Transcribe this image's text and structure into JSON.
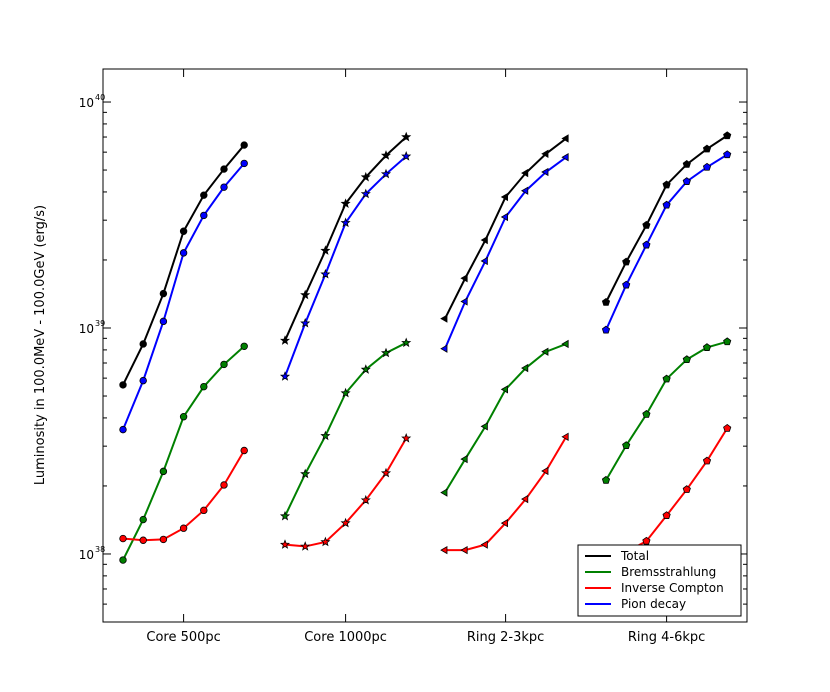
{
  "chart_data": {
    "type": "line",
    "title": "",
    "xlabel": "",
    "ylabel": "Luminosity in 100.0MeV - 100.0GeV (erg/s)",
    "yscale": "log",
    "ylim": [
      5e+37,
      1.4e+40
    ],
    "ytick_labels": [
      "10",
      "38",
      "10",
      "39",
      "10",
      "40"
    ],
    "ytick_values": [
      1e+38,
      1e+39,
      1e+40
    ],
    "grid": false,
    "legend_position": "lower right",
    "groups": [
      "Core 500pc",
      "Core 1000pc",
      "Ring 2-3kpc",
      "Ring 4-6kpc"
    ],
    "markers": [
      "circle",
      "star",
      "triangle-left",
      "pentagon"
    ],
    "series": [
      {
        "name": "Total",
        "color": "#000000",
        "values": [
          [
            5.6e+38,
            8.5e+38,
            1.42e+39,
            2.68e+39,
            3.87e+39,
            5.05e+39,
            6.45e+39
          ],
          [
            8.8e+38,
            1.4e+39,
            2.2e+39,
            3.55e+39,
            4.65e+39,
            5.8e+39,
            7e+39
          ],
          [
            1.1e+39,
            1.66e+39,
            2.45e+39,
            3.8e+39,
            4.85e+39,
            5.9e+39,
            6.9e+39
          ],
          [
            1.3e+39,
            1.96e+39,
            2.85e+39,
            4.3e+39,
            5.3e+39,
            6.2e+39,
            7.1e+39
          ]
        ]
      },
      {
        "name": "Bremsstrahlung",
        "color": "#008000",
        "values": [
          [
            9.4e+37,
            1.42e+38,
            2.32e+38,
            4.05e+38,
            5.5e+38,
            6.9e+38,
            8.3e+38
          ],
          [
            1.47e+38,
            2.26e+38,
            3.33e+38,
            5.15e+38,
            6.55e+38,
            7.75e+38,
            8.6e+38
          ],
          [
            1.87e+38,
            2.63e+38,
            3.67e+38,
            5.35e+38,
            6.65e+38,
            7.85e+38,
            8.5e+38
          ],
          [
            2.12e+38,
            3.02e+38,
            4.15e+38,
            5.95e+38,
            7.25e+38,
            8.2e+38,
            8.7e+38
          ]
        ]
      },
      {
        "name": "Inverse Compton",
        "color": "#ff0000",
        "values": [
          [
            1.17e+38,
            1.15e+38,
            1.16e+38,
            1.3e+38,
            1.56e+38,
            2.02e+38,
            2.87e+38
          ],
          [
            1.1e+38,
            1.08e+38,
            1.13e+38,
            1.37e+38,
            1.73e+38,
            2.28e+38,
            3.25e+38
          ],
          [
            1.04e+38,
            1.04e+38,
            1.1e+38,
            1.37e+38,
            1.75e+38,
            2.33e+38,
            3.3e+38
          ],
          [
            1.01e+38,
            1.02e+38,
            1.14e+38,
            1.48e+38,
            1.93e+38,
            2.58e+38,
            3.6e+38
          ]
        ]
      },
      {
        "name": "Pion decay",
        "color": "#0000ff",
        "values": [
          [
            3.55e+38,
            5.85e+38,
            1.07e+39,
            2.15e+39,
            3.15e+39,
            4.2e+39,
            5.35e+39
          ],
          [
            6.1e+38,
            1.05e+39,
            1.73e+39,
            2.92e+39,
            3.92e+39,
            4.8e+39,
            5.75e+39
          ],
          [
            8.1e+38,
            1.31e+39,
            1.98e+39,
            3.1e+39,
            4.05e+39,
            4.9e+39,
            5.7e+39
          ],
          [
            9.8e+38,
            1.55e+39,
            2.33e+39,
            3.5e+39,
            4.45e+39,
            5.15e+39,
            5.85e+39
          ]
        ]
      }
    ]
  }
}
